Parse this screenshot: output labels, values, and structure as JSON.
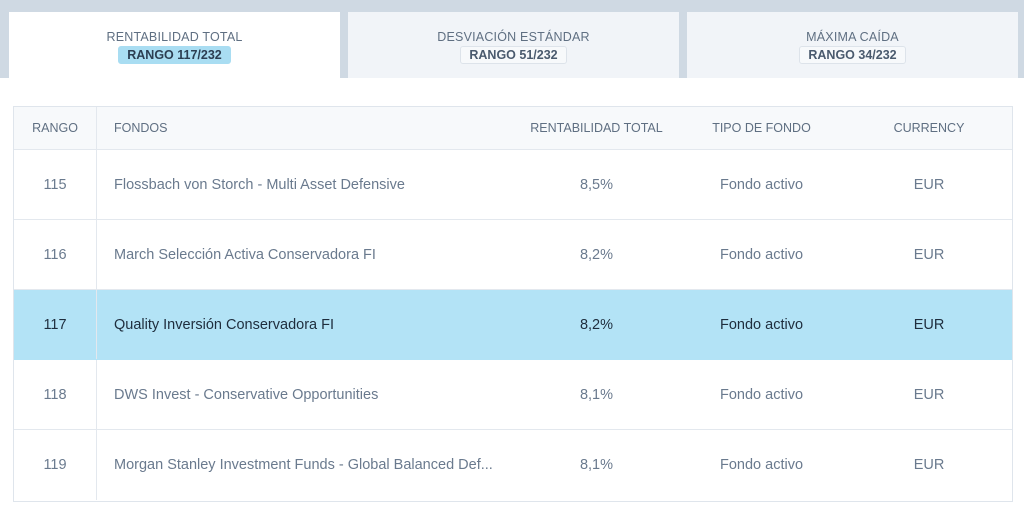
{
  "tabs": [
    {
      "title": "RENTABILIDAD TOTAL",
      "rank": "RANGO 117/232"
    },
    {
      "title": "DESVIACIÓN ESTÁNDAR",
      "rank": "RANGO 51/232"
    },
    {
      "title": "MÁXIMA CAÍDA",
      "rank": "RANGO 34/232"
    }
  ],
  "table": {
    "headers": {
      "rank": "RANGO",
      "fund": "FONDOS",
      "return": "RENTABILIDAD TOTAL",
      "type": "TIPO DE FONDO",
      "currency": "CURRENCY"
    },
    "rows": [
      {
        "rank": "115",
        "fund": "Flossbach von Storch - Multi Asset Defensive",
        "return": "8,5%",
        "type": "Fondo activo",
        "currency": "EUR"
      },
      {
        "rank": "116",
        "fund": "March Selección Activa Conservadora FI",
        "return": "8,2%",
        "type": "Fondo activo",
        "currency": "EUR"
      },
      {
        "rank": "117",
        "fund": "Quality Inversión Conservadora FI",
        "return": "8,2%",
        "type": "Fondo activo",
        "currency": "EUR"
      },
      {
        "rank": "118",
        "fund": "DWS Invest - Conservative Opportunities",
        "return": "8,1%",
        "type": "Fondo activo",
        "currency": "EUR"
      },
      {
        "rank": "119",
        "fund": "Morgan Stanley Investment Funds - Global Balanced Def...",
        "return": "8,1%",
        "type": "Fondo activo",
        "currency": "EUR"
      }
    ]
  },
  "colors": {
    "highlight": "#b3e3f6",
    "active_rank_badge": "#a9ddf2",
    "top_band": "#cfd9e3"
  }
}
